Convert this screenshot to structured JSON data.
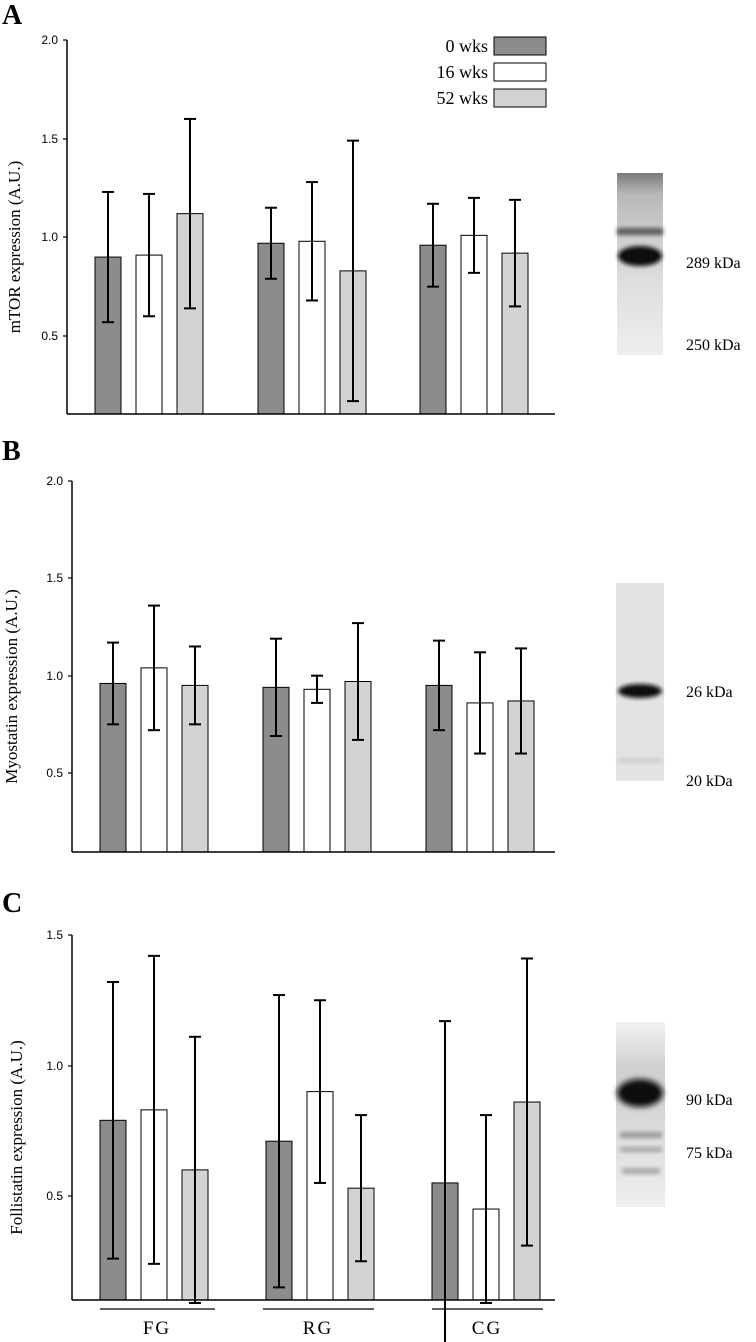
{
  "colors": {
    "wk0": "#8c8c8c",
    "wk16": "#ffffff",
    "wk52": "#d3d3d3",
    "axis": "#000000"
  },
  "legend": [
    {
      "label": "0 wks",
      "key": "wk0"
    },
    {
      "label": "16 wks",
      "key": "wk16"
    },
    {
      "label": "52 wks",
      "key": "wk52"
    }
  ],
  "group_labels": [
    "FG",
    "RG",
    "CG"
  ],
  "chart_data": [
    {
      "panel": "A",
      "type": "bar",
      "ylabel": "mTOR expression (A.U.)",
      "ylim": [
        0.1,
        2.0
      ],
      "yticks": [
        "0.5",
        "1.0",
        "1.5",
        "2.0"
      ],
      "categories": [
        "FG",
        "RG",
        "CG"
      ],
      "series": [
        {
          "name": "0 wks",
          "values": [
            0.9,
            0.97,
            0.96
          ],
          "error": [
            0.33,
            0.18,
            0.21
          ]
        },
        {
          "name": "16 wks",
          "values": [
            0.91,
            0.98,
            1.01
          ],
          "error": [
            0.31,
            0.3,
            0.19
          ]
        },
        {
          "name": "52 wks",
          "values": [
            1.12,
            0.83,
            0.92
          ],
          "error": [
            0.48,
            0.66,
            0.27
          ]
        }
      ],
      "blot": {
        "bands": [
          "289 kDa",
          "250 kDa"
        ]
      }
    },
    {
      "panel": "B",
      "type": "bar",
      "ylabel": "Myostatin expression (A.U.)",
      "ylim": [
        0.1,
        2.0
      ],
      "yticks": [
        "0.5",
        "1.0",
        "1.5",
        "2.0"
      ],
      "categories": [
        "FG",
        "RG",
        "CG"
      ],
      "series": [
        {
          "name": "0 wks",
          "values": [
            0.96,
            0.94,
            0.95
          ],
          "error": [
            0.21,
            0.25,
            0.23
          ]
        },
        {
          "name": "16 wks",
          "values": [
            1.04,
            0.93,
            0.86
          ],
          "error": [
            0.32,
            0.07,
            0.26
          ]
        },
        {
          "name": "52 wks",
          "values": [
            0.95,
            0.97,
            0.87
          ],
          "error": [
            0.2,
            0.3,
            0.27
          ]
        }
      ],
      "blot": {
        "bands": [
          "26 kDa",
          "20 kDa"
        ]
      }
    },
    {
      "panel": "C",
      "type": "bar",
      "ylabel": "Follistatin expression (A.U.)",
      "ylim": [
        0.1,
        1.5
      ],
      "yticks": [
        "0.5",
        "1.0",
        "1.5"
      ],
      "categories": [
        "FG",
        "RG",
        "CG"
      ],
      "series": [
        {
          "name": "0 wks",
          "values": [
            0.79,
            0.71,
            0.55
          ],
          "error": [
            0.53,
            0.56,
            0.62
          ]
        },
        {
          "name": "16 wks",
          "values": [
            0.83,
            0.9,
            0.45
          ],
          "error": [
            0.59,
            0.35,
            0.36
          ]
        },
        {
          "name": "52 wks",
          "values": [
            0.6,
            0.53,
            0.86
          ],
          "error": [
            0.51,
            0.28,
            0.55
          ]
        }
      ],
      "blot": {
        "bands": [
          "90 kDa",
          "75 kDa"
        ]
      }
    }
  ]
}
